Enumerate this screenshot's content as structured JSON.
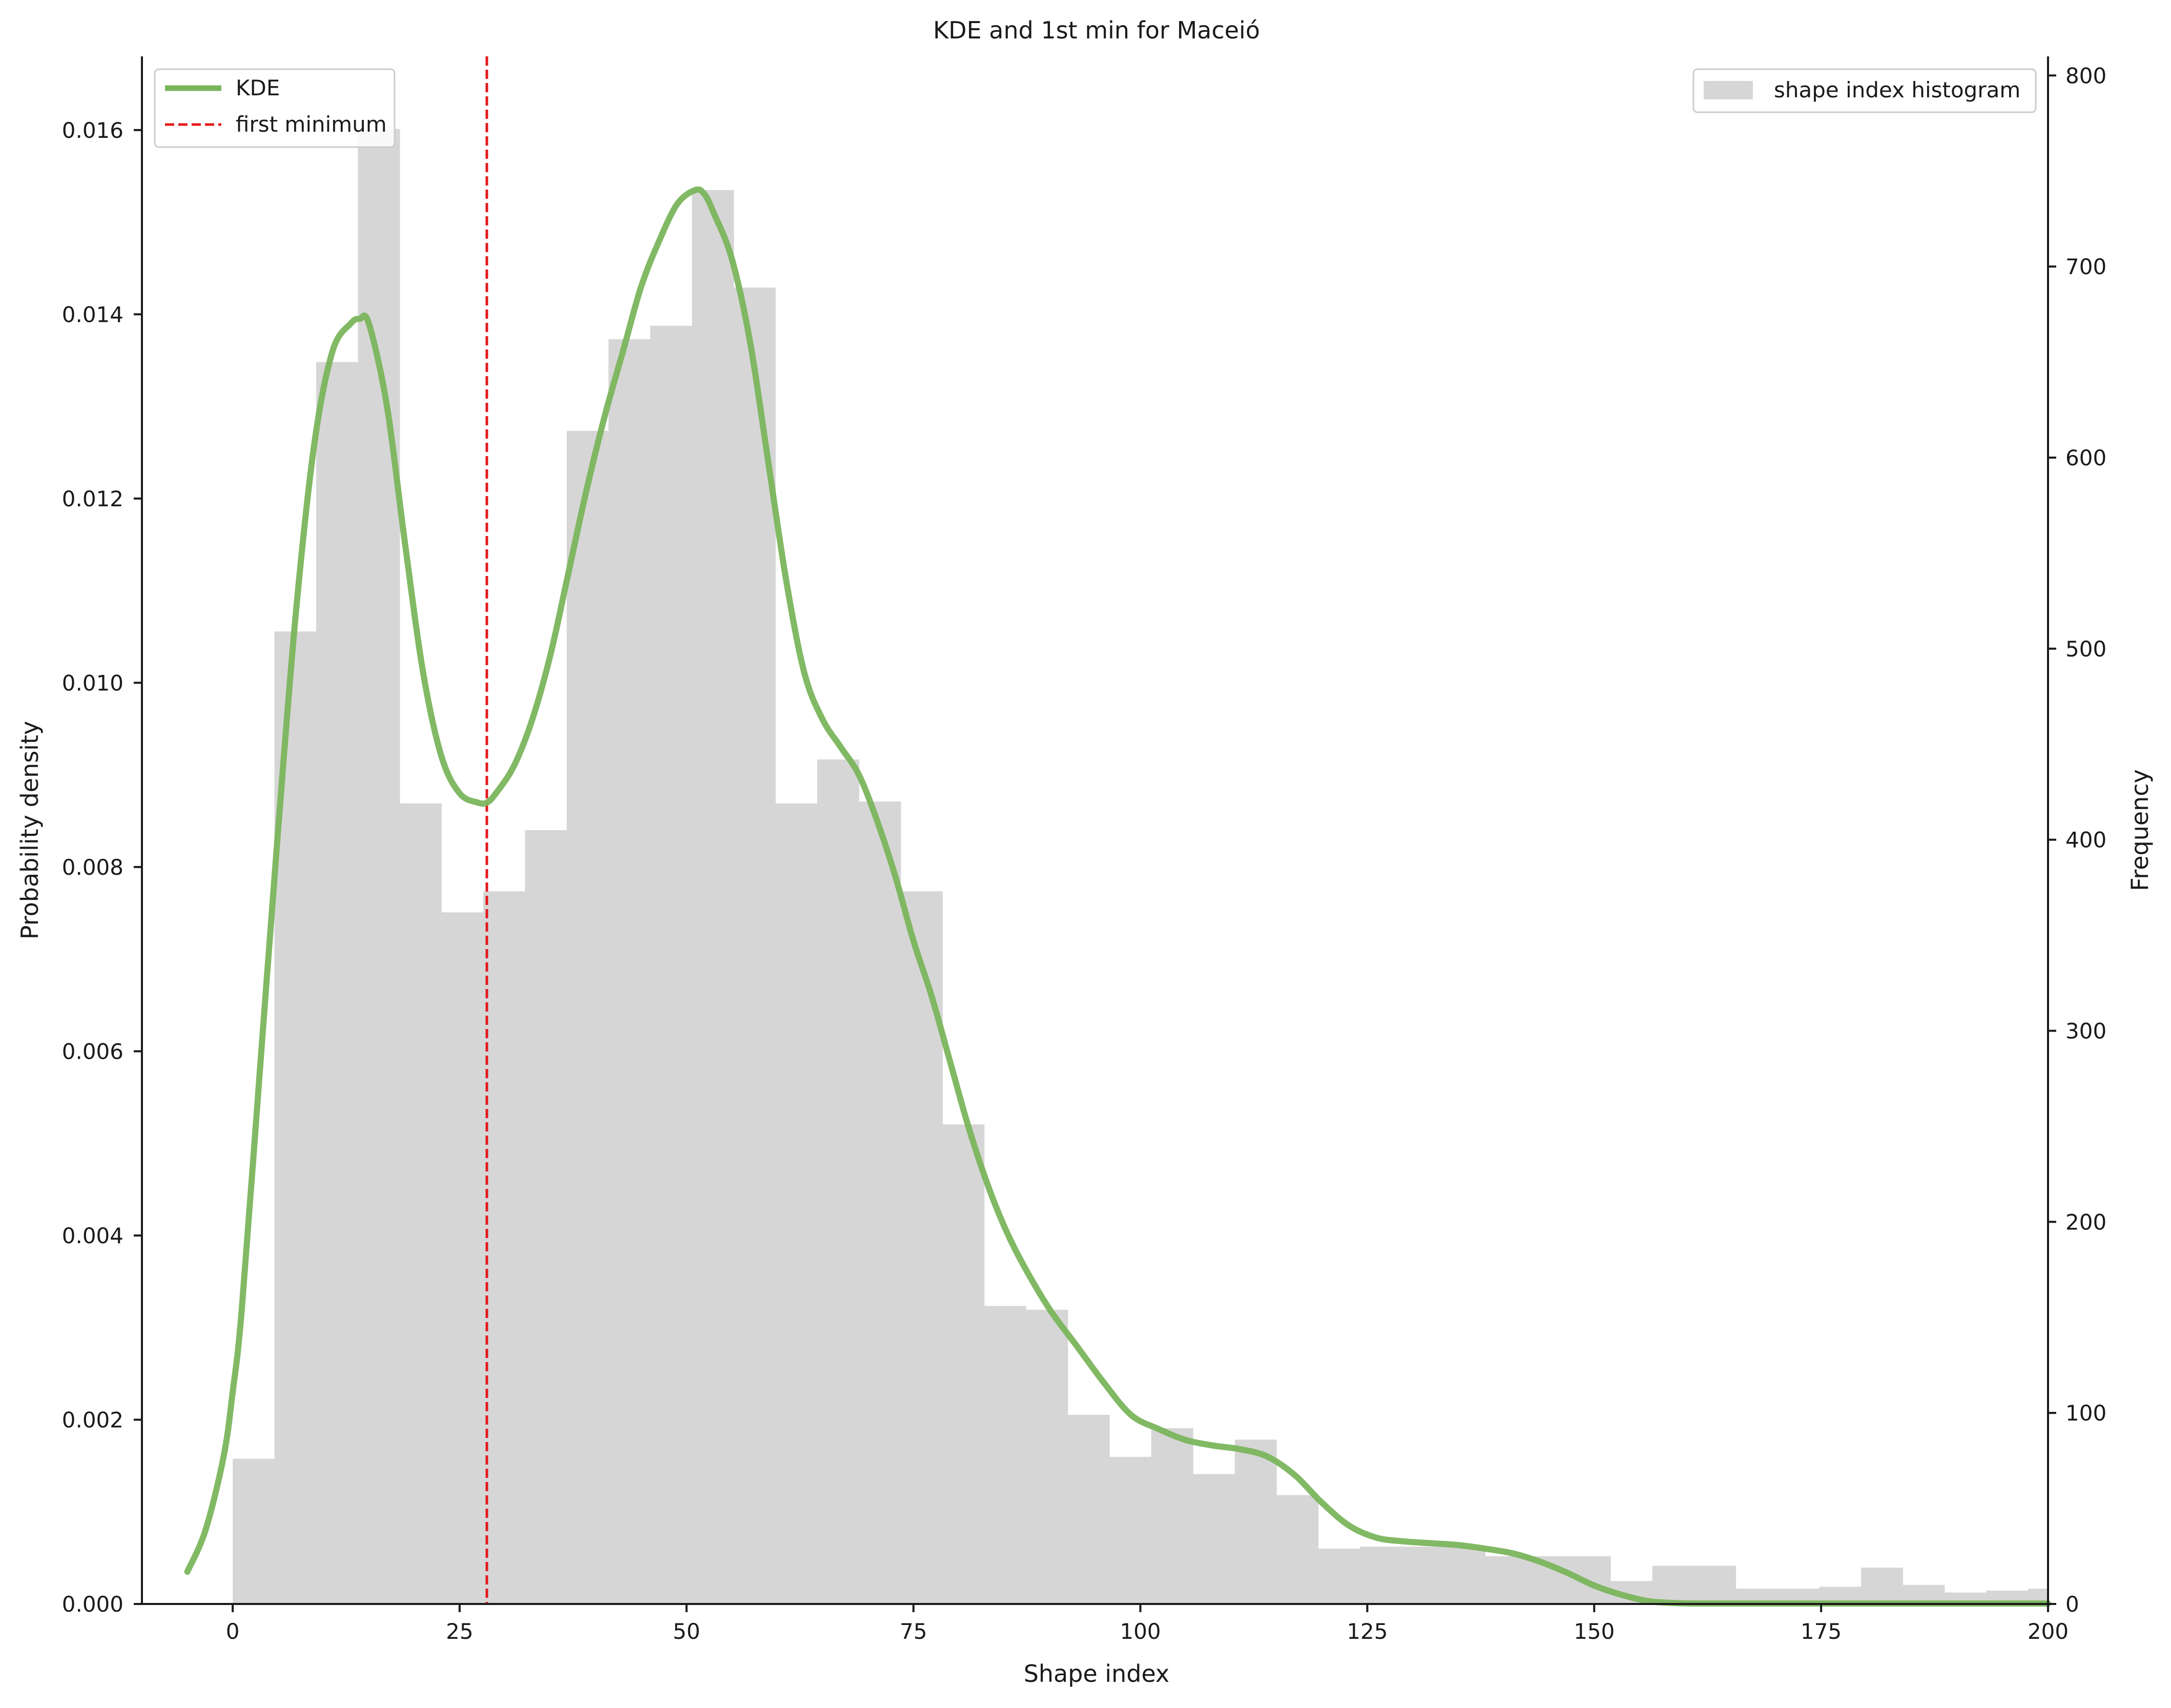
{
  "chart_data": {
    "type": "bar",
    "title": "KDE and 1st min for Maceió",
    "xlabel": "Shape index",
    "ylabel_left": "Probability density",
    "ylabel_right": "Frequency",
    "xlim": [
      -10,
      200
    ],
    "ylim_left": [
      0,
      0.0168
    ],
    "ylim_right": [
      0,
      810
    ],
    "x_ticks": [
      0,
      25,
      50,
      75,
      100,
      125,
      150,
      175,
      200
    ],
    "x_tick_labels": [
      "0",
      "25",
      "50",
      "75",
      "100",
      "125",
      "150",
      "175",
      "200"
    ],
    "y_left_ticks": [
      0,
      0.002,
      0.004,
      0.006,
      0.008,
      0.01,
      0.012,
      0.014,
      0.016
    ],
    "y_left_tick_labels": [
      "0.000",
      "0.002",
      "0.004",
      "0.006",
      "0.008",
      "0.010",
      "0.012",
      "0.014",
      "0.016"
    ],
    "y_right_ticks": [
      0,
      100,
      200,
      300,
      400,
      500,
      600,
      700,
      800
    ],
    "y_right_tick_labels": [
      "0",
      "100",
      "200",
      "300",
      "400",
      "500",
      "600",
      "700",
      "800"
    ],
    "histogram": {
      "name": "shape index histogram",
      "color": "#d6d6d6",
      "bin_width": 4.6,
      "bin_starts": [
        0.0,
        4.6,
        9.2,
        13.8,
        18.4,
        23.0,
        27.6,
        32.2,
        36.8,
        41.4,
        46.0,
        50.6,
        55.2,
        59.8,
        64.4,
        69.0,
        73.6,
        78.2,
        82.8,
        87.4,
        92.0,
        96.6,
        101.2,
        105.8,
        110.4,
        115.0,
        119.6,
        124.2,
        128.8,
        133.4,
        138.0,
        142.6,
        147.2,
        151.8,
        156.4,
        161.0,
        165.6,
        170.2,
        174.8,
        179.4,
        184.0,
        188.6,
        193.2,
        197.8
      ],
      "counts": [
        76,
        509,
        650,
        772,
        419,
        362,
        373,
        405,
        614,
        662,
        669,
        740,
        689,
        419,
        442,
        420,
        373,
        251,
        156,
        154,
        99,
        77,
        92,
        68,
        86,
        57,
        29,
        30,
        30,
        30,
        25,
        25,
        25,
        12,
        20,
        20,
        8,
        8,
        9,
        19,
        10,
        6,
        7,
        8
      ]
    },
    "kde": {
      "name": "KDE",
      "color": "#7ab55c",
      "x": [
        -5,
        -3,
        -1,
        0,
        1,
        3,
        5,
        7,
        9,
        11,
        13,
        14,
        15,
        17,
        19,
        21,
        23,
        25,
        27,
        28,
        29,
        31,
        33,
        35,
        37,
        39,
        41,
        43,
        45,
        47,
        49,
        51,
        52,
        53,
        55,
        57,
        59,
        61,
        63,
        65,
        67,
        69,
        71,
        73,
        75,
        77,
        79,
        81,
        83,
        85,
        87,
        90,
        93,
        96,
        99,
        102,
        105,
        108,
        111,
        114,
        117,
        120,
        123,
        126,
        129,
        132,
        135,
        138,
        141,
        144,
        147,
        150,
        153,
        156,
        159,
        162,
        170,
        180,
        190,
        200
      ],
      "y": [
        0.00035,
        0.0008,
        0.0016,
        0.0023,
        0.0032,
        0.0058,
        0.0084,
        0.0108,
        0.0126,
        0.0136,
        0.0139,
        0.01395,
        0.0139,
        0.013,
        0.0115,
        0.0101,
        0.0092,
        0.0088,
        0.0087,
        0.0087,
        0.0088,
        0.0091,
        0.0096,
        0.0103,
        0.0112,
        0.0121,
        0.0129,
        0.0136,
        0.0143,
        0.0148,
        0.0152,
        0.01535,
        0.0153,
        0.0151,
        0.0146,
        0.0137,
        0.0124,
        0.0111,
        0.0101,
        0.0096,
        0.0093,
        0.009,
        0.0085,
        0.0079,
        0.0072,
        0.0066,
        0.0059,
        0.0052,
        0.0046,
        0.0041,
        0.0037,
        0.0032,
        0.0028,
        0.0024,
        0.00205,
        0.0019,
        0.00178,
        0.00172,
        0.00168,
        0.0016,
        0.0014,
        0.0011,
        0.00085,
        0.00072,
        0.00068,
        0.00066,
        0.00064,
        0.0006,
        0.00055,
        0.00046,
        0.00034,
        0.0002,
        0.0001,
        3e-05,
        1e-05,
        5e-06,
        5e-06,
        5e-06,
        5e-06,
        5e-06
      ]
    },
    "first_minimum": {
      "name": "first minimum",
      "x": 28,
      "color": "#e41a1c"
    },
    "legend_left_placement": "top-left",
    "legend_right_placement": "top-right",
    "grid": false
  }
}
